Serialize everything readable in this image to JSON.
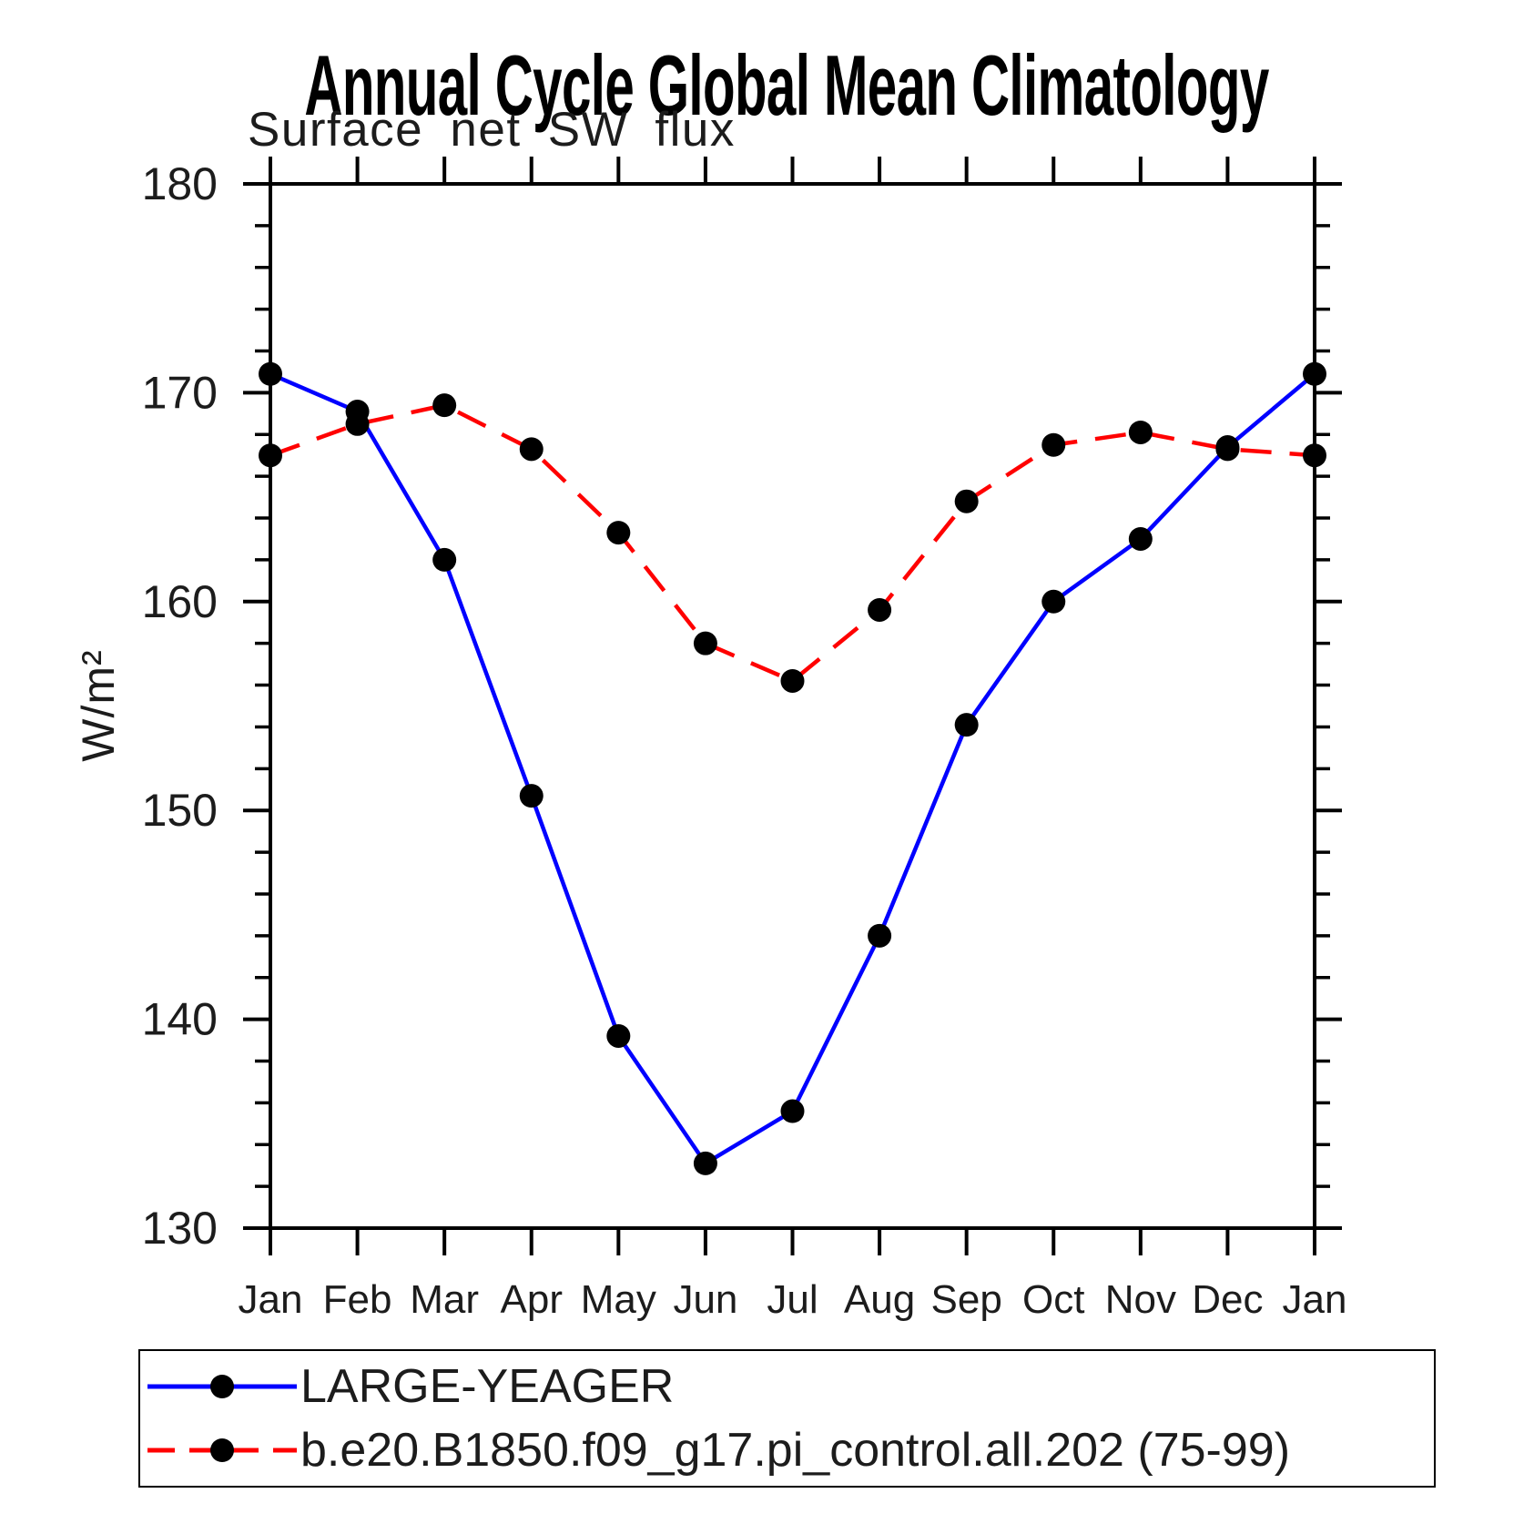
{
  "chart_data": {
    "type": "line",
    "title": "Annual Cycle Global Mean Climatology",
    "subtitle": "Surface net SW flux",
    "ylabel": "W/m²",
    "xlabel": "",
    "categories": [
      "Jan",
      "Feb",
      "Mar",
      "Apr",
      "May",
      "Jun",
      "Jul",
      "Aug",
      "Sep",
      "Oct",
      "Nov",
      "Dec",
      "Jan"
    ],
    "series": [
      {
        "name": "LARGE-YEAGER",
        "color": "#0000ff",
        "line_style": "solid",
        "marker": "filled-circle",
        "marker_color": "#000000",
        "values": [
          170.9,
          169.1,
          162.0,
          150.7,
          139.2,
          133.1,
          135.6,
          144.0,
          154.1,
          160.0,
          163.0,
          167.4,
          170.9
        ]
      },
      {
        "name": "b.e20.B1850.f09_g17.pi_control.all.202 (75-99)",
        "color": "#ff0000",
        "line_style": "dashed",
        "marker": "filled-circle",
        "marker_color": "#000000",
        "values": [
          167.0,
          168.5,
          169.4,
          167.3,
          163.3,
          158.0,
          156.2,
          159.6,
          164.8,
          167.5,
          168.1,
          167.3,
          167.0
        ]
      }
    ],
    "ylim": [
      130,
      180
    ],
    "yticks_major": [
      130,
      140,
      150,
      160,
      170,
      180
    ],
    "ytick_minor_step": 2,
    "grid": false,
    "legend_position": "bottom-left-box",
    "axis_color": "#000000",
    "background_color": "#ffffff"
  }
}
